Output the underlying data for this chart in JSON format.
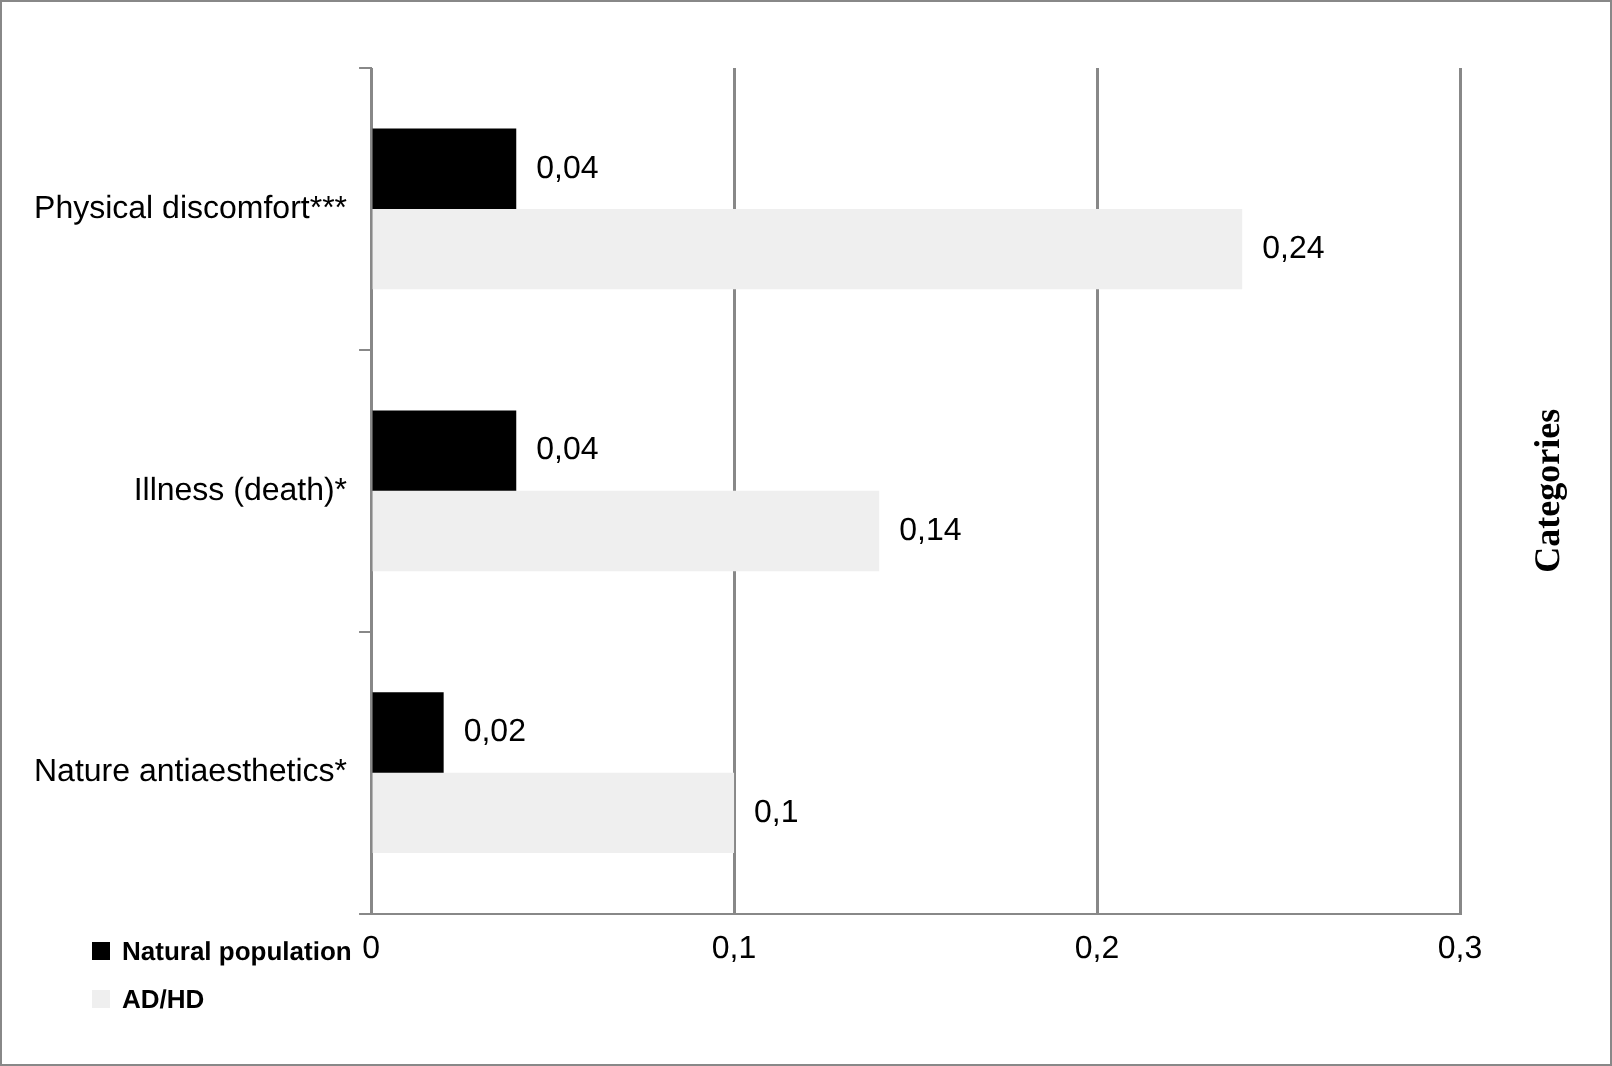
{
  "chart_data": {
    "type": "bar",
    "orientation": "horizontal",
    "ylabel": "Categories",
    "categories": [
      "Physical discomfort***",
      "Illness (death)*",
      "Nature antiaesthetics*"
    ],
    "series": [
      {
        "name": "Natural population",
        "color": "#000000",
        "values": [
          0.04,
          0.04,
          0.02
        ],
        "value_labels": [
          "0,04",
          "0,04",
          "0,02"
        ]
      },
      {
        "name": "AD/HD",
        "color": "#efefef",
        "values": [
          0.24,
          0.14,
          0.1
        ],
        "value_labels": [
          "0,24",
          "0,14",
          "0,1"
        ]
      }
    ],
    "xlim": [
      0,
      0.3
    ],
    "xticks": [
      0,
      {
        "value": 0.1,
        "label": "0,1"
      },
      {
        "value": 0.2,
        "label": "0,2"
      },
      {
        "value": 0.3,
        "label": "0,3"
      }
    ],
    "grid": "x",
    "legend": "bottom left"
  }
}
